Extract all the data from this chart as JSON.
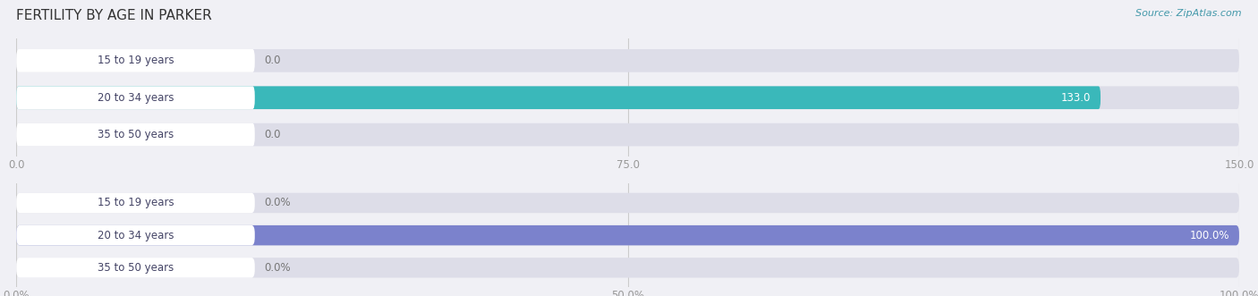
{
  "title": "FERTILITY BY AGE IN PARKER",
  "source": "Source: ZipAtlas.com",
  "top_chart": {
    "categories": [
      "15 to 19 years",
      "20 to 34 years",
      "35 to 50 years"
    ],
    "values": [
      0.0,
      133.0,
      0.0
    ],
    "xlim": [
      0,
      150.0
    ],
    "xticks": [
      0.0,
      75.0,
      150.0
    ],
    "xtick_labels": [
      "0.0",
      "75.0",
      "150.0"
    ],
    "bar_color": "#3ab8ba",
    "bg_bar_color": "#dddde8"
  },
  "bottom_chart": {
    "categories": [
      "15 to 19 years",
      "20 to 34 years",
      "35 to 50 years"
    ],
    "values": [
      0.0,
      100.0,
      0.0
    ],
    "xlim": [
      0,
      100.0
    ],
    "xticks": [
      0.0,
      50.0,
      100.0
    ],
    "xtick_labels": [
      "0.0%",
      "50.0%",
      "100.0%"
    ],
    "bar_color": "#7b82cc",
    "bg_bar_color": "#dddde8"
  },
  "label_font_size": 8.5,
  "tick_font_size": 8.5,
  "title_font_size": 11,
  "source_font_size": 8,
  "category_font_size": 8.5,
  "background_color": "#f0f0f5",
  "white_label_color": "#ffffff",
  "label_bg_color": "#ffffff",
  "category_text_color": "#444466",
  "value_label_outside_color": "#777777",
  "value_label_inside_color": "#ffffff",
  "tick_color": "#999999",
  "gridline_color": "#cccccc"
}
